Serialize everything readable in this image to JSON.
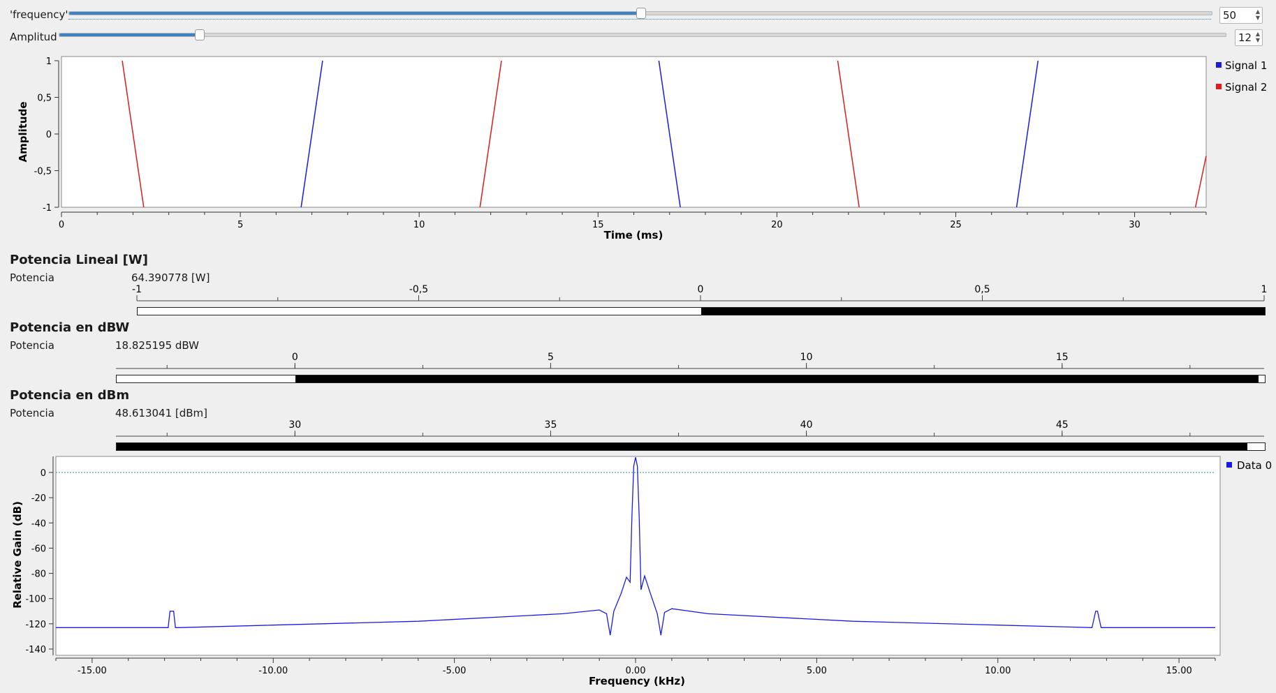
{
  "controls": {
    "frequency": {
      "label": "'frequency'",
      "value": "50",
      "fraction": 0.5
    },
    "amplitude": {
      "label": "Amplitud",
      "value": "12",
      "fraction": 0.12
    }
  },
  "time_plot": {
    "ylabel": "Amplitude",
    "xlabel": "Time (ms)",
    "ytick_labels": [
      "1",
      "0,5",
      "0",
      "-0,5",
      "-1"
    ],
    "xtick_labels": [
      "0",
      "5",
      "10",
      "15",
      "20",
      "25",
      "30"
    ],
    "legend": [
      {
        "name": "Signal 1",
        "color": "#1a1ae6"
      },
      {
        "name": "Signal 2",
        "color": "#e01b1b"
      }
    ]
  },
  "meters": {
    "lineal": {
      "title": "Potencia Lineal [W]",
      "label": "Potencia",
      "value": "64.390778 [W]",
      "tick_labels": [
        "-1",
        "-0,5",
        "0",
        "0,5",
        "1"
      ],
      "range": [
        -1,
        1
      ],
      "level": 1
    },
    "dbw": {
      "title": "Potencia en dBW",
      "label": "Potencia",
      "value": "18.825195 dBW",
      "tick_labels": [
        "0",
        "5",
        "10",
        "15"
      ],
      "level": 18.825195
    },
    "dbm": {
      "title": "Potencia en dBm",
      "label": "Potencia",
      "value": "48.613041 [dBm]",
      "tick_labels": [
        "30",
        "35",
        "40",
        "45"
      ],
      "level": 48.613041
    }
  },
  "freq_plot": {
    "ylabel": "Relative Gain (dB)",
    "xlabel": "Frequency (kHz)",
    "ytick_labels": [
      "0",
      "-20",
      "-40",
      "-60",
      "-80",
      "-100",
      "-120",
      "-140"
    ],
    "xtick_labels": [
      "-15.00",
      "-10.00",
      "-5.00",
      "0.00",
      "5.00",
      "10.00",
      "15.00"
    ],
    "legend": [
      {
        "name": "Data 0",
        "color": "#1a1ae6"
      }
    ],
    "reference_line_db": 0
  },
  "chart_data": [
    {
      "type": "line",
      "title": "",
      "xlabel": "Time (ms)",
      "ylabel": "Amplitude",
      "xlim": [
        0,
        32
      ],
      "ylim": [
        -1,
        1
      ],
      "grid": false,
      "legend_position": "right",
      "series": [
        {
          "name": "Signal 1",
          "color": "#1a1ae6",
          "x": [
            6.7,
            7.3,
            16.7,
            17.3,
            26.7,
            27.3
          ],
          "y": [
            -1,
            1,
            1,
            -1,
            -1,
            1
          ],
          "segments": [
            [
              6.7,
              -1,
              7.3,
              1
            ],
            [
              16.7,
              1,
              17.3,
              -1
            ],
            [
              26.7,
              -1,
              27.3,
              1
            ]
          ]
        },
        {
          "name": "Signal 2",
          "color": "#e01b1b",
          "x": [
            1.7,
            2.3,
            11.7,
            12.3,
            21.7,
            22.3,
            31.7,
            32.0
          ],
          "y": [
            1,
            -1,
            -1,
            1,
            1,
            -1,
            -1,
            -0.3
          ],
          "segments": [
            [
              1.7,
              1,
              2.3,
              -1
            ],
            [
              11.7,
              -1,
              12.3,
              1
            ],
            [
              21.7,
              1,
              22.3,
              -1
            ],
            [
              31.7,
              -1,
              32.0,
              -0.3
            ]
          ]
        }
      ]
    },
    {
      "type": "line",
      "title": "",
      "xlabel": "Frequency (kHz)",
      "ylabel": "Relative Gain (dB)",
      "xlim": [
        -16,
        16
      ],
      "ylim": [
        -142,
        12
      ],
      "grid": false,
      "legend_position": "right",
      "series": [
        {
          "name": "Data 0",
          "color": "#1a1ae6",
          "x": [
            -16,
            -13.0,
            -12.9,
            -12.85,
            -12.75,
            -12.7,
            -12.6,
            -10,
            -6,
            -2,
            -1,
            -0.8,
            -0.7,
            -0.6,
            -0.4,
            -0.25,
            -0.15,
            -0.1,
            -0.05,
            0,
            0.05,
            0.1,
            0.15,
            0.25,
            0.4,
            0.6,
            0.7,
            0.8,
            1,
            2,
            6,
            10,
            12.6,
            12.7,
            12.75,
            12.85,
            12.9,
            13.0,
            16
          ],
          "y": [
            -123,
            -123,
            -123,
            -110,
            -110,
            -123,
            -123,
            -121,
            -118,
            -112,
            -109,
            -112,
            -129,
            -110,
            -96,
            -83,
            -87,
            -35,
            5,
            12,
            5,
            -35,
            -93,
            -82,
            -95,
            -112,
            -129,
            -111,
            -108,
            -112,
            -118,
            -121,
            -123,
            -110,
            -110,
            -123,
            -123,
            -123,
            -123
          ]
        }
      ]
    }
  ]
}
